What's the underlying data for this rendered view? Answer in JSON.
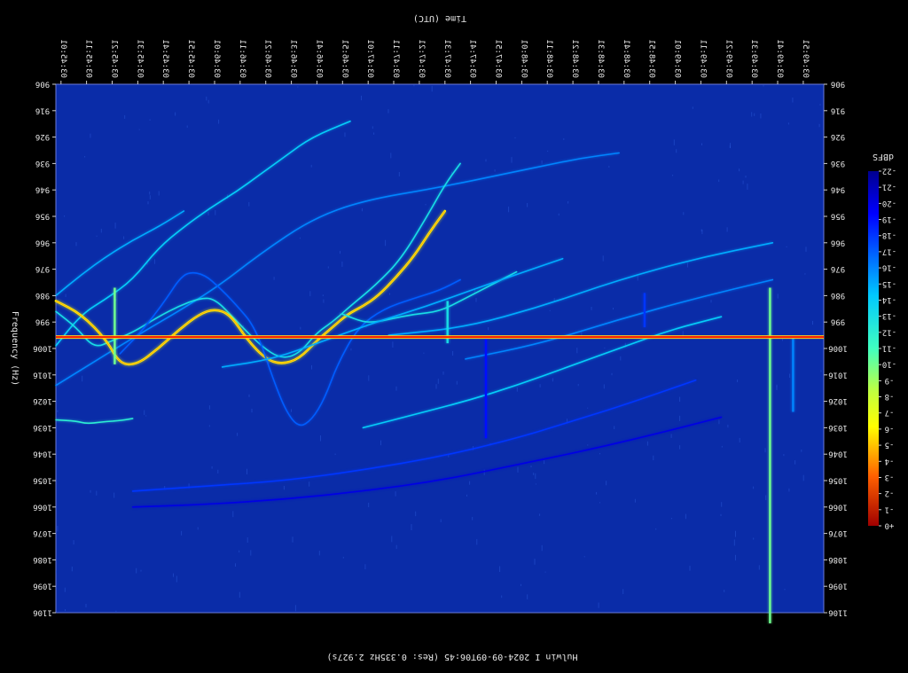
{
  "chart_data": {
    "type": "heatmap",
    "title": "Time (UTC)",
    "xlabel": "Time (UTC)",
    "ylabel": "Frequency (Hz)",
    "caption": "Hulwin I 2024-09-09T06:45 (Res: 0.335Hz 2.927s)",
    "colorbar_label": "dBFS",
    "grid": false,
    "time_ticks": [
      "03:45:01",
      "03:45:11",
      "03:45:21",
      "03:45:31",
      "03:45:41",
      "03:45:51",
      "03:46:01",
      "03:46:11",
      "03:46:21",
      "03:46:31",
      "03:46:41",
      "03:46:51",
      "03:47:01",
      "03:47:11",
      "03:47:21",
      "03:47:31",
      "03:47:41",
      "03:47:51",
      "03:48:01",
      "03:48:11",
      "03:48:21",
      "03:48:31",
      "03:48:41",
      "03:48:51",
      "03:49:01",
      "03:49:11",
      "03:49:21",
      "03:49:31",
      "03:49:41",
      "03:49:51"
    ],
    "freq_ticks": [
      "906",
      "916",
      "926",
      "936",
      "946",
      "956",
      "966",
      "976",
      "986",
      "996",
      "1006",
      "1016",
      "1026",
      "1036",
      "1046",
      "1056",
      "1066",
      "1076",
      "1086",
      "1096",
      "1106"
    ],
    "colorbar_ticks": [
      "-22",
      "-21",
      "-20",
      "-19",
      "-18",
      "-17",
      "-16",
      "-15",
      "-14",
      "-13",
      "-12",
      "-11",
      "-10",
      "-9",
      "-8",
      "-7",
      "-6",
      "-5",
      "-4",
      "-3",
      "-2",
      "-1",
      "+0"
    ],
    "colorbar_range": [
      -22,
      0
    ],
    "colors": {
      "background": "#000000",
      "plot_background": "#0a2ca8",
      "carrier": "#ff1a00",
      "trace_strong": "#ffee33",
      "trace_mid": "#33e0d0",
      "trace_weak": "#2a7cf0"
    },
    "carrier_frequency_hz": 1001.7,
    "traces": [
      {
        "level": -12,
        "points": [
          [
            0,
            1033
          ],
          [
            8,
            1033.5
          ],
          [
            12,
            1034.5
          ],
          [
            18,
            1033.8
          ],
          [
            26,
            1033.2
          ],
          [
            30,
            1032.5
          ]
        ]
      },
      {
        "level": -15,
        "points": [
          [
            0,
            986
          ],
          [
            10,
            978
          ],
          [
            20,
            971
          ],
          [
            30,
            965
          ],
          [
            40,
            960
          ],
          [
            50,
            954
          ]
        ]
      },
      {
        "level": -14,
        "points": [
          [
            0,
            1005
          ],
          [
            10,
            993
          ],
          [
            20,
            987
          ],
          [
            30,
            980
          ],
          [
            40,
            968
          ],
          [
            50,
            960
          ],
          [
            60,
            953
          ],
          [
            70,
            947
          ],
          [
            80,
            940
          ],
          [
            90,
            933
          ],
          [
            100,
            926
          ],
          [
            115,
            920
          ]
        ]
      },
      {
        "level": -16,
        "points": [
          [
            0,
            1020
          ],
          [
            30,
            1002
          ],
          [
            60,
            985
          ],
          [
            80,
            970
          ],
          [
            100,
            957
          ],
          [
            120,
            950
          ],
          [
            150,
            945
          ],
          [
            175,
            940
          ],
          [
            190,
            937
          ],
          [
            205,
            934
          ],
          [
            220,
            932
          ]
        ]
      },
      {
        "level": -13,
        "points": [
          [
            0,
            992
          ],
          [
            8,
            998
          ],
          [
            15,
            1006
          ],
          [
            22,
            1003
          ],
          [
            30,
            1000
          ],
          [
            40,
            994
          ],
          [
            48,
            990
          ],
          [
            56,
            987
          ],
          [
            62,
            987
          ],
          [
            70,
            995
          ],
          [
            80,
            1005
          ],
          [
            88,
            1010
          ],
          [
            95,
            1008
          ],
          [
            102,
            1000
          ],
          [
            108,
            996
          ],
          [
            115,
            990
          ],
          [
            125,
            982
          ],
          [
            135,
            972
          ],
          [
            145,
            956
          ],
          [
            152,
            944
          ],
          [
            158,
            936
          ]
        ]
      },
      {
        "level": -6,
        "points": [
          [
            0,
            988
          ],
          [
            10,
            993
          ],
          [
            20,
            1003
          ],
          [
            25,
            1012
          ],
          [
            32,
            1012
          ],
          [
            40,
            1006
          ],
          [
            48,
            999
          ],
          [
            56,
            993
          ],
          [
            62,
            991
          ],
          [
            68,
            993
          ],
          [
            75,
            1003
          ],
          [
            82,
            1010
          ],
          [
            88,
            1012
          ],
          [
            95,
            1010
          ],
          [
            102,
            1003
          ],
          [
            108,
            998
          ],
          [
            114,
            993
          ],
          [
            120,
            990
          ],
          [
            126,
            986
          ],
          [
            133,
            979
          ],
          [
            140,
            971
          ],
          [
            146,
            962
          ],
          [
            152,
            954
          ]
        ]
      },
      {
        "level": -17,
        "points": [
          [
            25,
            1008
          ],
          [
            32,
            1001
          ],
          [
            38,
            994
          ],
          [
            44,
            986
          ],
          [
            48,
            980
          ],
          [
            52,
            977
          ],
          [
            58,
            978
          ],
          [
            64,
            983
          ],
          [
            70,
            989
          ],
          [
            78,
            998
          ],
          [
            85,
            1018
          ],
          [
            90,
            1030
          ],
          [
            95,
            1036
          ],
          [
            100,
            1033
          ],
          [
            105,
            1025
          ],
          [
            110,
            1012
          ],
          [
            118,
            998
          ],
          [
            128,
            991
          ],
          [
            140,
            987
          ],
          [
            150,
            984
          ],
          [
            158,
            980
          ]
        ]
      },
      {
        "level": -13,
        "points": [
          [
            112,
            993
          ],
          [
            120,
            996
          ],
          [
            125,
            996
          ],
          [
            130,
            995
          ],
          [
            140,
            993
          ],
          [
            150,
            992
          ],
          [
            160,
            987
          ],
          [
            170,
            982
          ],
          [
            180,
            977
          ]
        ]
      },
      {
        "level": -15,
        "points": [
          [
            65,
            1013
          ],
          [
            85,
            1010
          ],
          [
            105,
            1003
          ],
          [
            125,
            996
          ],
          [
            145,
            990
          ],
          [
            165,
            983
          ],
          [
            180,
            978
          ],
          [
            198,
            972
          ]
        ]
      },
      {
        "level": -14,
        "points": [
          [
            120,
            1036
          ],
          [
            140,
            1031
          ],
          [
            160,
            1026
          ],
          [
            180,
            1020
          ],
          [
            200,
            1013
          ],
          [
            220,
            1006
          ],
          [
            240,
            999
          ],
          [
            260,
            994
          ]
        ]
      },
      {
        "level": -15,
        "points": [
          [
            130,
            1001
          ],
          [
            160,
            998
          ],
          [
            190,
            990
          ],
          [
            220,
            980
          ],
          [
            250,
            972
          ],
          [
            280,
            966
          ]
        ]
      },
      {
        "level": -16,
        "points": [
          [
            160,
            1010
          ],
          [
            190,
            1004
          ],
          [
            220,
            995
          ],
          [
            250,
            987
          ],
          [
            280,
            980
          ]
        ]
      },
      {
        "level": -18,
        "points": [
          [
            30,
            1060
          ],
          [
            60,
            1058
          ],
          [
            90,
            1056
          ],
          [
            120,
            1052
          ],
          [
            150,
            1047
          ],
          [
            180,
            1040
          ],
          [
            200,
            1034
          ],
          [
            220,
            1028
          ],
          [
            250,
            1018
          ]
        ]
      },
      {
        "level": -20,
        "points": [
          [
            30,
            1066
          ],
          [
            60,
            1065
          ],
          [
            90,
            1063
          ],
          [
            120,
            1060
          ],
          [
            150,
            1056
          ],
          [
            180,
            1050
          ],
          [
            210,
            1044
          ],
          [
            240,
            1037
          ],
          [
            260,
            1032
          ]
        ]
      }
    ],
    "bursts": [
      {
        "time_s": 23,
        "freq_range": [
          983,
          1012
        ],
        "level": -10
      },
      {
        "time_s": 153,
        "freq_range": [
          988,
          1004
        ],
        "level": -13
      },
      {
        "time_s": 279,
        "freq_range": [
          983,
          1110
        ],
        "level": -10
      },
      {
        "time_s": 288,
        "freq_range": [
          1002,
          1030
        ],
        "level": -16
      },
      {
        "time_s": 230,
        "freq_range": [
          985,
          998
        ],
        "level": -18
      },
      {
        "time_s": 168,
        "freq_range": [
          1002,
          1040
        ],
        "level": -19
      }
    ]
  }
}
